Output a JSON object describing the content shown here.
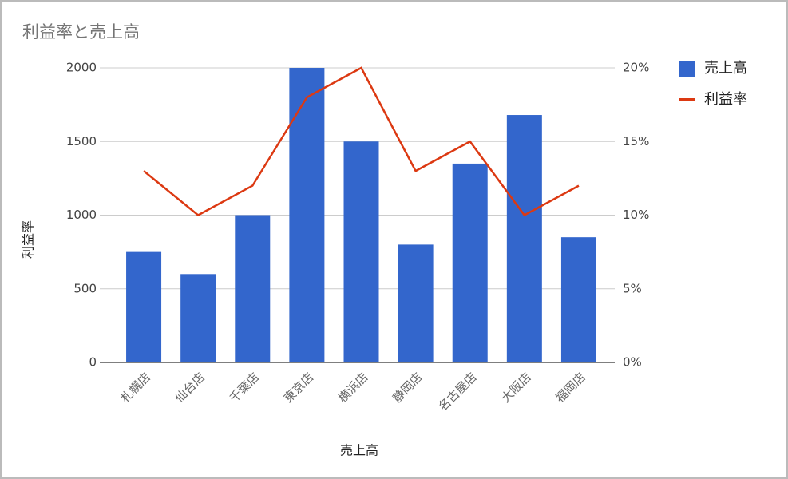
{
  "chart_data": {
    "type": "combo",
    "title": "利益率と売上高",
    "x_label": "売上高",
    "y_label": "利益率",
    "categories": [
      "札幌店",
      "仙台店",
      "千葉店",
      "東京店",
      "横浜店",
      "静岡店",
      "名古屋店",
      "大阪店",
      "福岡店"
    ],
    "series": [
      {
        "name": "売上高",
        "type": "bar",
        "color": "#3366cc",
        "values": [
          750,
          600,
          1000,
          2000,
          1500,
          800,
          1350,
          1680,
          850
        ]
      },
      {
        "name": "利益率",
        "type": "line",
        "axis": "y2",
        "color": "#dc3912",
        "values": [
          13,
          10,
          12,
          18,
          20,
          13,
          15,
          10,
          12
        ]
      }
    ],
    "ylim": [
      0,
      2000
    ],
    "yticks": [
      0,
      500,
      1000,
      1500,
      2000
    ],
    "y2lim": [
      0,
      20
    ],
    "y2ticks": [
      {
        "value": 0,
        "label": "0%"
      },
      {
        "value": 5,
        "label": "5%"
      },
      {
        "value": 10,
        "label": "10%"
      },
      {
        "value": 15,
        "label": "15%"
      },
      {
        "value": 20,
        "label": "20%"
      }
    ],
    "grid": true,
    "legend": "right"
  }
}
